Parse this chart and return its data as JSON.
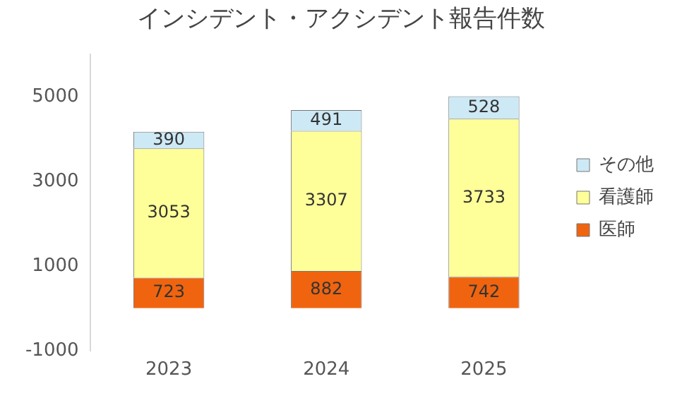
{
  "chart_data": {
    "type": "bar",
    "title": "インシデント・アクシデント報告件数",
    "categories": [
      "2023",
      "2024",
      "2025"
    ],
    "stacked": true,
    "data_labels": true,
    "legend": "right",
    "grid": false,
    "series": [
      {
        "name": "医師",
        "color": "#f0640f",
        "values": [
          723,
          882,
          742
        ]
      },
      {
        "name": "看護師",
        "color": "#ffff99",
        "values": [
          3053,
          3307,
          3733
        ]
      },
      {
        "name": "その他",
        "color": "#cde9f5",
        "values": [
          390,
          491,
          528
        ]
      }
    ],
    "ylim": [
      -1000,
      6000
    ],
    "yticks": [
      -1000,
      1000,
      3000,
      5000
    ]
  }
}
